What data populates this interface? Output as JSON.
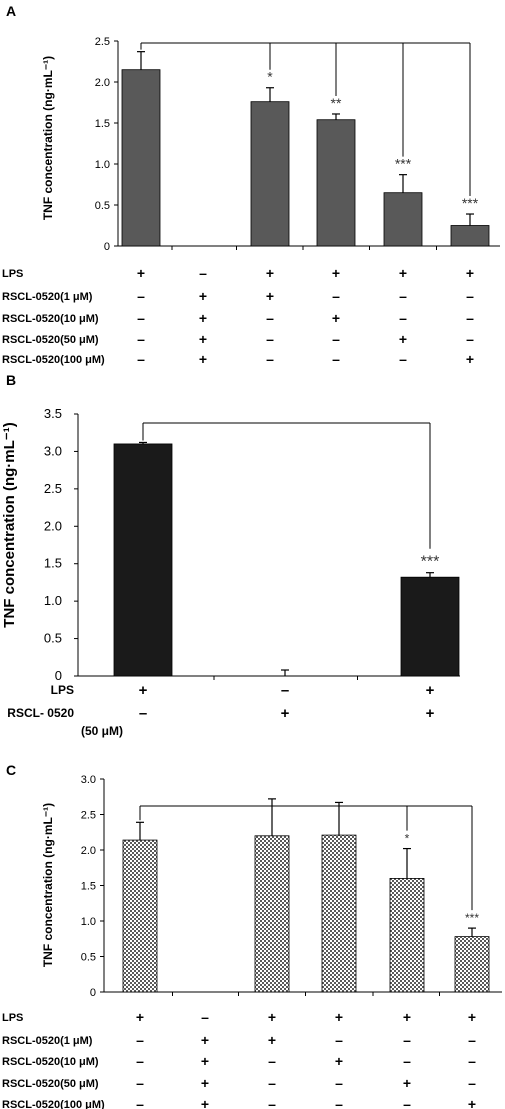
{
  "chart_data": [
    {
      "panel_label": "A",
      "type": "bar",
      "ylabel": "TNF concentration (ng·mL⁻¹)",
      "ylim": [
        0,
        2.5
      ],
      "yticks": [
        "0",
        "0.5",
        "1.0",
        "1.5",
        "2.0",
        "2.5"
      ],
      "values": [
        2.15,
        null,
        1.76,
        1.54,
        0.65,
        0.25
      ],
      "errors": [
        0.22,
        null,
        0.17,
        0.07,
        0.22,
        0.14
      ],
      "significance": [
        "",
        "",
        "*",
        "**",
        "***",
        "***"
      ],
      "bar_color": "#595959",
      "conditions": [
        {
          "label": "LPS",
          "marks": [
            "+",
            "–",
            "+",
            "+",
            "+",
            "+"
          ]
        },
        {
          "label": "RSCL-0520(1 μM)",
          "marks": [
            "–",
            "+",
            "+",
            "–",
            "–",
            "–"
          ]
        },
        {
          "label": "RSCL-0520(10 μM)",
          "marks": [
            "–",
            "+",
            "–",
            "+",
            "–",
            "–"
          ]
        },
        {
          "label": "RSCL-0520(50 μM)",
          "marks": [
            "–",
            "+",
            "–",
            "–",
            "+",
            "–"
          ]
        },
        {
          "label": "RSCL-0520(100 μM)",
          "marks": [
            "–",
            "+",
            "–",
            "–",
            "–",
            "+"
          ]
        }
      ]
    },
    {
      "panel_label": "B",
      "type": "bar",
      "ylabel": "TNF concentration (ng·mL⁻¹)",
      "ylim": [
        0,
        3.5
      ],
      "yticks": [
        "0",
        "0.5",
        "1.0",
        "1.5",
        "2.0",
        "2.5",
        "3.0",
        "3.5"
      ],
      "values": [
        3.1,
        0.0,
        1.32
      ],
      "errors": [
        0.02,
        0.08,
        0.06
      ],
      "significance": [
        "",
        "",
        "***"
      ],
      "bar_color": "#1a1a1a",
      "conditions": [
        {
          "label": "LPS",
          "marks": [
            "+",
            "–",
            "+"
          ]
        },
        {
          "label": "RSCL- 0520",
          "marks": [
            "–",
            "+",
            "+"
          ]
        }
      ],
      "condition_note": "(50 μM)"
    },
    {
      "panel_label": "C",
      "type": "bar",
      "ylabel": "TNF concentration (ng·mL⁻¹)",
      "ylim": [
        0,
        3.0
      ],
      "yticks": [
        "0",
        "0.5",
        "1.0",
        "1.5",
        "2.0",
        "2.5",
        "3.0"
      ],
      "values": [
        2.14,
        null,
        2.2,
        2.21,
        1.6,
        0.78
      ],
      "errors": [
        0.25,
        null,
        0.52,
        0.46,
        0.42,
        0.12
      ],
      "significance": [
        "",
        "",
        "",
        "",
        "*",
        "***"
      ],
      "bar_color": "#8a8a8a",
      "conditions": [
        {
          "label": "LPS",
          "marks": [
            "+",
            "–",
            "+",
            "+",
            "+",
            "+"
          ]
        },
        {
          "label": "RSCL-0520(1 μM)",
          "marks": [
            "–",
            "+",
            "+",
            "–",
            "–",
            "–"
          ]
        },
        {
          "label": "RSCL-0520(10 μM)",
          "marks": [
            "–",
            "+",
            "–",
            "+",
            "–",
            "–"
          ]
        },
        {
          "label": "RSCL-0520(50 μM)",
          "marks": [
            "–",
            "+",
            "–",
            "–",
            "+",
            "–"
          ]
        },
        {
          "label": "RSCL-0520(100 μM)",
          "marks": [
            "–",
            "+",
            "–",
            "–",
            "–",
            "+"
          ]
        }
      ]
    }
  ]
}
